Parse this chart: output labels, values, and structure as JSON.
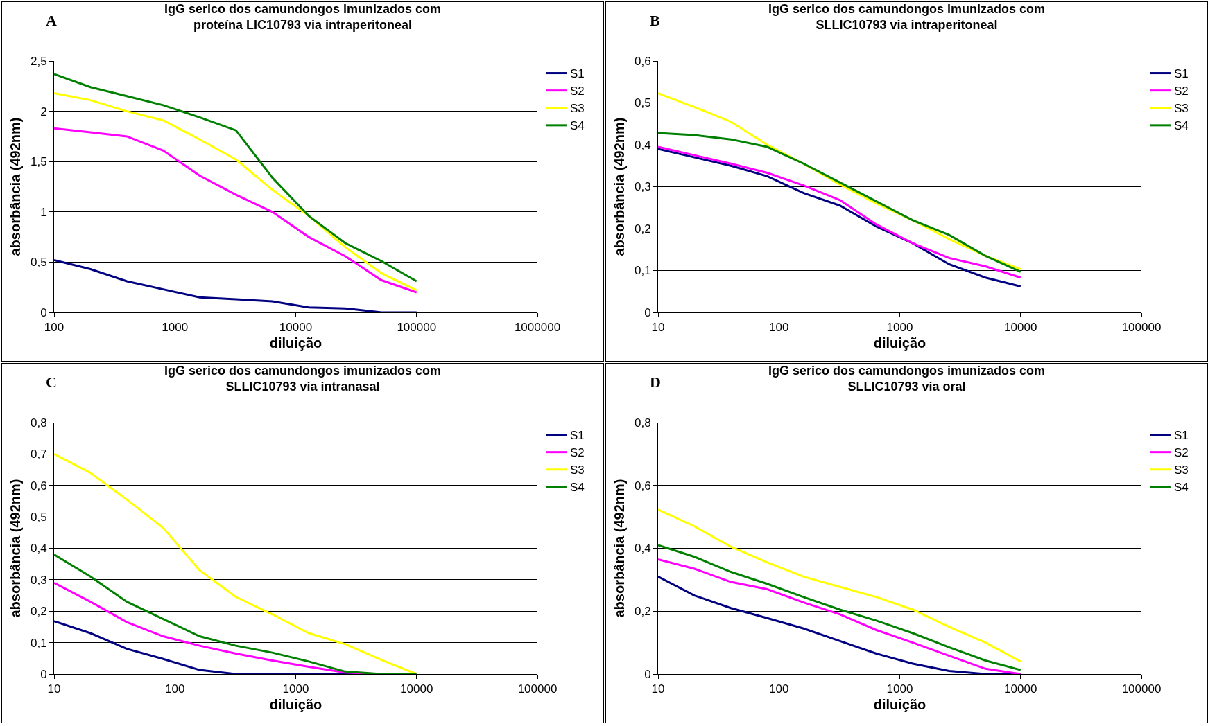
{
  "chart_data": [
    {
      "type": "line",
      "title": "IgG serico dos camundongos imunizados com\nproteína LIC10793 via intraperitoneal",
      "annotations": [
        "A"
      ],
      "xlabel": "diluição",
      "ylabel": "absorbância (492nm)",
      "log": "x",
      "grid": "y",
      "legend": "right",
      "marker": "none",
      "line_style": "solid",
      "x": [
        100,
        200,
        400,
        800,
        1600,
        3200,
        6400,
        12800,
        25600,
        51200,
        100000
      ],
      "xlim": [
        100,
        1000000
      ],
      "xticks": [
        100,
        1000,
        10000,
        100000,
        1000000
      ],
      "ylim": [
        0,
        2.5
      ],
      "yticks": [
        0,
        {
          "value": 0.5,
          "label": "0,5"
        },
        1,
        {
          "value": 1.5,
          "label": "1,5"
        },
        2,
        {
          "value": 2.5,
          "label": "2,5"
        }
      ],
      "series": [
        {
          "name": "S1",
          "color": "#000080",
          "values": [
            0.52,
            0.43,
            0.31,
            0.23,
            0.15,
            0.13,
            0.11,
            0.05,
            0.04,
            0,
            0
          ]
        },
        {
          "name": "S2",
          "color": "#ff00ff",
          "values": [
            1.83,
            1.79,
            1.75,
            1.61,
            1.36,
            1.17,
            1.0,
            0.75,
            0.56,
            0.32,
            0.2
          ]
        },
        {
          "name": "S3",
          "color": "#ffff00",
          "values": [
            2.18,
            2.11,
            2.0,
            1.91,
            1.72,
            1.52,
            1.22,
            0.96,
            0.65,
            0.39,
            0.22
          ]
        },
        {
          "name": "S4",
          "color": "#008000",
          "values": [
            2.37,
            2.24,
            2.15,
            2.06,
            1.94,
            1.81,
            1.34,
            0.96,
            0.69,
            0.51,
            0.31
          ]
        }
      ]
    },
    {
      "type": "line",
      "title": "IgG serico dos camundongos imunizados com\nSLLIC10793 via intraperitoneal",
      "annotations": [
        "B"
      ],
      "xlabel": "diluição",
      "ylabel": "absorbância (492nm)",
      "log": "x",
      "grid": "y",
      "legend": "right",
      "marker": "none",
      "line_style": "solid",
      "x": [
        10,
        20,
        40,
        80,
        160,
        320,
        640,
        1280,
        2560,
        5120,
        10000
      ],
      "xlim": [
        10,
        100000
      ],
      "xticks": [
        10,
        100,
        1000,
        10000,
        100000
      ],
      "ylim": [
        0,
        0.6
      ],
      "yticks": [
        0,
        {
          "value": 0.1,
          "label": "0,1"
        },
        {
          "value": 0.2,
          "label": "0,2"
        },
        {
          "value": 0.3,
          "label": "0,3"
        },
        {
          "value": 0.4,
          "label": "0,4"
        },
        {
          "value": 0.5,
          "label": "0,5"
        },
        {
          "value": 0.6,
          "label": "0,6"
        }
      ],
      "series": [
        {
          "name": "S1",
          "color": "#000080",
          "values": [
            0.39,
            0.37,
            0.35,
            0.325,
            0.285,
            0.255,
            0.205,
            0.165,
            0.115,
            0.083,
            0.062
          ]
        },
        {
          "name": "S2",
          "color": "#ff00ff",
          "values": [
            0.395,
            0.375,
            0.355,
            0.333,
            0.303,
            0.268,
            0.21,
            0.165,
            0.13,
            0.11,
            0.083
          ]
        },
        {
          "name": "S3",
          "color": "#ffff00",
          "values": [
            0.523,
            0.49,
            0.455,
            0.4,
            0.355,
            0.305,
            0.26,
            0.22,
            0.175,
            0.135,
            0.103
          ]
        },
        {
          "name": "S4",
          "color": "#008000",
          "values": [
            0.428,
            0.423,
            0.413,
            0.395,
            0.355,
            0.31,
            0.265,
            0.22,
            0.185,
            0.135,
            0.097
          ]
        }
      ]
    },
    {
      "type": "line",
      "title": "IgG serico dos camundongos imunizados com\nSLLIC10793 via intranasal",
      "annotations": [
        "C"
      ],
      "xlabel": "diluição",
      "ylabel": "absorbância (492nm)",
      "log": "x",
      "grid": "y",
      "legend": "right",
      "marker": "none",
      "line_style": "solid",
      "x": [
        10,
        20,
        40,
        80,
        160,
        320,
        640,
        1280,
        2560,
        5120,
        10000
      ],
      "xlim": [
        10,
        100000
      ],
      "xticks": [
        10,
        100,
        1000,
        10000,
        100000
      ],
      "ylim": [
        0,
        0.8
      ],
      "yticks": [
        0,
        {
          "value": 0.1,
          "label": "0,1"
        },
        {
          "value": 0.2,
          "label": "0,2"
        },
        {
          "value": 0.3,
          "label": "0,3"
        },
        {
          "value": 0.4,
          "label": "0,4"
        },
        {
          "value": 0.5,
          "label": "0,5"
        },
        {
          "value": 0.6,
          "label": "0,6"
        },
        {
          "value": 0.7,
          "label": "0,7"
        },
        {
          "value": 0.8,
          "label": "0,8"
        }
      ],
      "series": [
        {
          "name": "S1",
          "color": "#000080",
          "values": [
            0.168,
            0.13,
            0.08,
            0.048,
            0.013,
            0,
            0,
            0,
            0,
            0,
            0
          ]
        },
        {
          "name": "S2",
          "color": "#ff00ff",
          "values": [
            0.29,
            0.23,
            0.165,
            0.12,
            0.09,
            0.065,
            0.043,
            0.023,
            0.005,
            0,
            0
          ]
        },
        {
          "name": "S3",
          "color": "#ffff00",
          "values": [
            0.7,
            0.64,
            0.555,
            0.465,
            0.33,
            0.245,
            0.19,
            0.13,
            0.095,
            0.045,
            0
          ]
        },
        {
          "name": "S4",
          "color": "#008000",
          "values": [
            0.38,
            0.31,
            0.23,
            0.175,
            0.12,
            0.09,
            0.068,
            0.04,
            0.008,
            0,
            0
          ]
        }
      ]
    },
    {
      "type": "line",
      "title": "IgG serico dos camundongos imunizados com\nSLLIC10793 via oral",
      "annotations": [
        "D"
      ],
      "xlabel": "diluição",
      "ylabel": "absorbância (492nm)",
      "log": "x",
      "grid": "y",
      "legend": "right",
      "marker": "none",
      "line_style": "solid",
      "x": [
        10,
        20,
        40,
        80,
        160,
        320,
        640,
        1280,
        2560,
        5120,
        10000
      ],
      "xlim": [
        10,
        100000
      ],
      "xticks": [
        10,
        100,
        1000,
        10000,
        100000
      ],
      "ylim": [
        0,
        0.8
      ],
      "yticks": [
        0,
        {
          "value": 0.2,
          "label": "0,2"
        },
        {
          "value": 0.4,
          "label": "0,4"
        },
        {
          "value": 0.6,
          "label": "0,6"
        },
        {
          "value": 0.8,
          "label": "0,8"
        }
      ],
      "series": [
        {
          "name": "S1",
          "color": "#000080",
          "values": [
            0.31,
            0.25,
            0.21,
            0.178,
            0.145,
            0.105,
            0.065,
            0.033,
            0.01,
            0,
            0
          ]
        },
        {
          "name": "S2",
          "color": "#ff00ff",
          "values": [
            0.365,
            0.335,
            0.293,
            0.27,
            0.228,
            0.19,
            0.14,
            0.1,
            0.058,
            0.017,
            0
          ]
        },
        {
          "name": "S3",
          "color": "#ffff00",
          "values": [
            0.523,
            0.47,
            0.405,
            0.355,
            0.31,
            0.277,
            0.245,
            0.205,
            0.15,
            0.1,
            0.04
          ]
        },
        {
          "name": "S4",
          "color": "#008000",
          "values": [
            0.41,
            0.373,
            0.325,
            0.287,
            0.245,
            0.205,
            0.17,
            0.13,
            0.085,
            0.043,
            0.013
          ]
        }
      ]
    }
  ]
}
